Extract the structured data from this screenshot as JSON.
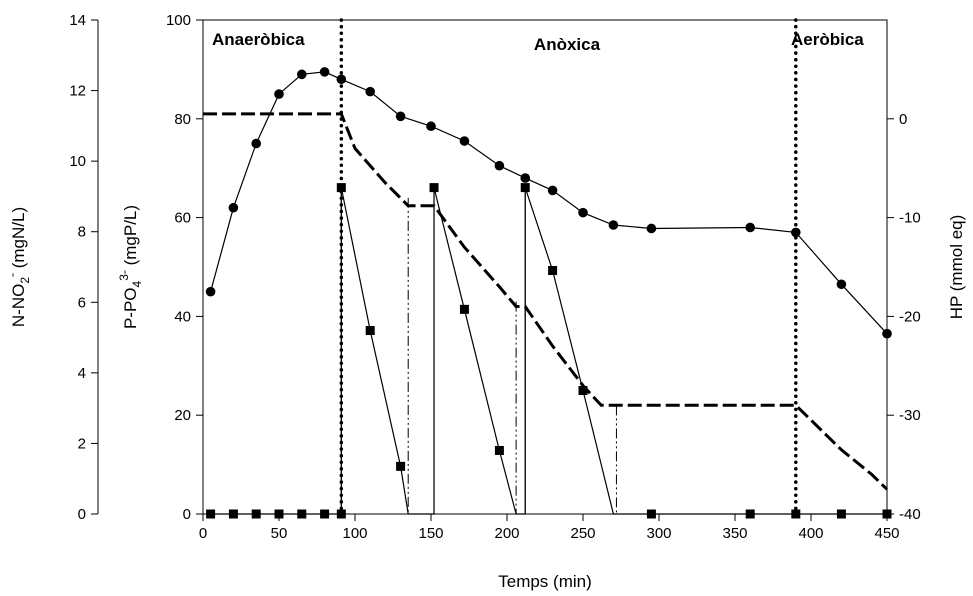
{
  "chart_data": {
    "type": "line",
    "x": {
      "label": "Temps (min)",
      "range": [
        0,
        450
      ],
      "ticks": [
        "0",
        "50",
        "100",
        "150",
        "200",
        "250",
        "300",
        "350",
        "400",
        "450"
      ]
    },
    "y_left_outer": {
      "label_base": "N-NO",
      "label_sub": "2",
      "label_sup": "-",
      "label_tail": " (mgN/L)",
      "range": [
        0,
        14
      ],
      "ticks": [
        "0",
        "2",
        "4",
        "6",
        "8",
        "10",
        "12",
        "14"
      ]
    },
    "y_left_inner": {
      "label_base": "P-PO",
      "label_sub": "4",
      "label_sup": "3-",
      "label_tail": " (mgP/L)",
      "range": [
        0,
        100
      ],
      "ticks": [
        "0",
        "20",
        "40",
        "60",
        "80",
        "100"
      ]
    },
    "y_right": {
      "label": "HP (mmol eq)",
      "range": [
        -40,
        10
      ],
      "ticks": [
        "-40",
        "-30",
        "-20",
        "-10",
        "0"
      ]
    },
    "phases": [
      {
        "label": "Anaeròbica"
      },
      {
        "label": "Anòxica"
      },
      {
        "label": "Aeròbica"
      }
    ],
    "phase_boundaries": [
      91,
      390
    ],
    "series": [
      {
        "axis": "y_left_inner",
        "marker": "circle",
        "points": [
          [
            5,
            45
          ],
          [
            20,
            62
          ],
          [
            35,
            75
          ],
          [
            50,
            85
          ],
          [
            65,
            89
          ],
          [
            80,
            89.5
          ],
          [
            91,
            88
          ],
          [
            110,
            85.5
          ],
          [
            130,
            80.5
          ],
          [
            150,
            78.5
          ],
          [
            172,
            75.5
          ],
          [
            195,
            70.5
          ],
          [
            212,
            68
          ],
          [
            230,
            65.5
          ],
          [
            250,
            61
          ],
          [
            270,
            58.5
          ],
          [
            295,
            57.8
          ],
          [
            360,
            58
          ],
          [
            390,
            57
          ],
          [
            420,
            46.5
          ],
          [
            450,
            36.5
          ]
        ]
      },
      {
        "axis": "y_left_outer",
        "marker": "square",
        "points": [
          [
            5,
            0
          ],
          [
            20,
            0
          ],
          [
            35,
            0
          ],
          [
            50,
            0
          ],
          [
            65,
            0
          ],
          [
            80,
            0
          ],
          [
            91,
            0
          ],
          [
            91,
            9.25
          ],
          [
            110,
            5.2
          ],
          [
            130,
            1.35
          ],
          [
            135,
            0
          ],
          [
            152,
            0
          ],
          [
            152,
            9.25
          ],
          [
            172,
            5.8
          ],
          [
            195,
            1.8
          ],
          [
            206,
            0
          ],
          [
            212,
            0
          ],
          [
            212,
            9.25
          ],
          [
            230,
            6.9
          ],
          [
            250,
            3.5
          ],
          [
            270,
            0
          ],
          [
            295,
            0
          ],
          [
            360,
            0
          ],
          [
            390,
            0
          ],
          [
            420,
            0
          ],
          [
            450,
            0
          ]
        ]
      },
      {
        "axis": "y_right",
        "style": "dashed",
        "points": [
          [
            0,
            0.5
          ],
          [
            91,
            0.5
          ],
          [
            100,
            -3
          ],
          [
            120,
            -6.5
          ],
          [
            135,
            -8.8
          ],
          [
            152,
            -8.8
          ],
          [
            172,
            -13
          ],
          [
            195,
            -17
          ],
          [
            206,
            -19
          ],
          [
            212,
            -19
          ],
          [
            230,
            -23
          ],
          [
            250,
            -27
          ],
          [
            262,
            -29
          ],
          [
            390,
            -29
          ],
          [
            400,
            -30.5
          ],
          [
            420,
            -33.5
          ],
          [
            440,
            -36
          ],
          [
            450,
            -37.5
          ]
        ]
      }
    ],
    "dosing_lines": [
      {
        "x": 91,
        "top": 66,
        "style": "solid"
      },
      {
        "x": 135,
        "top": 64,
        "style": "dashdot"
      },
      {
        "x": 152,
        "top": 66,
        "style": "solid"
      },
      {
        "x": 206,
        "top": 43,
        "style": "dashdot"
      },
      {
        "x": 212,
        "top": 66,
        "style": "solid"
      },
      {
        "x": 272,
        "top": 22,
        "style": "dashdot"
      }
    ]
  }
}
